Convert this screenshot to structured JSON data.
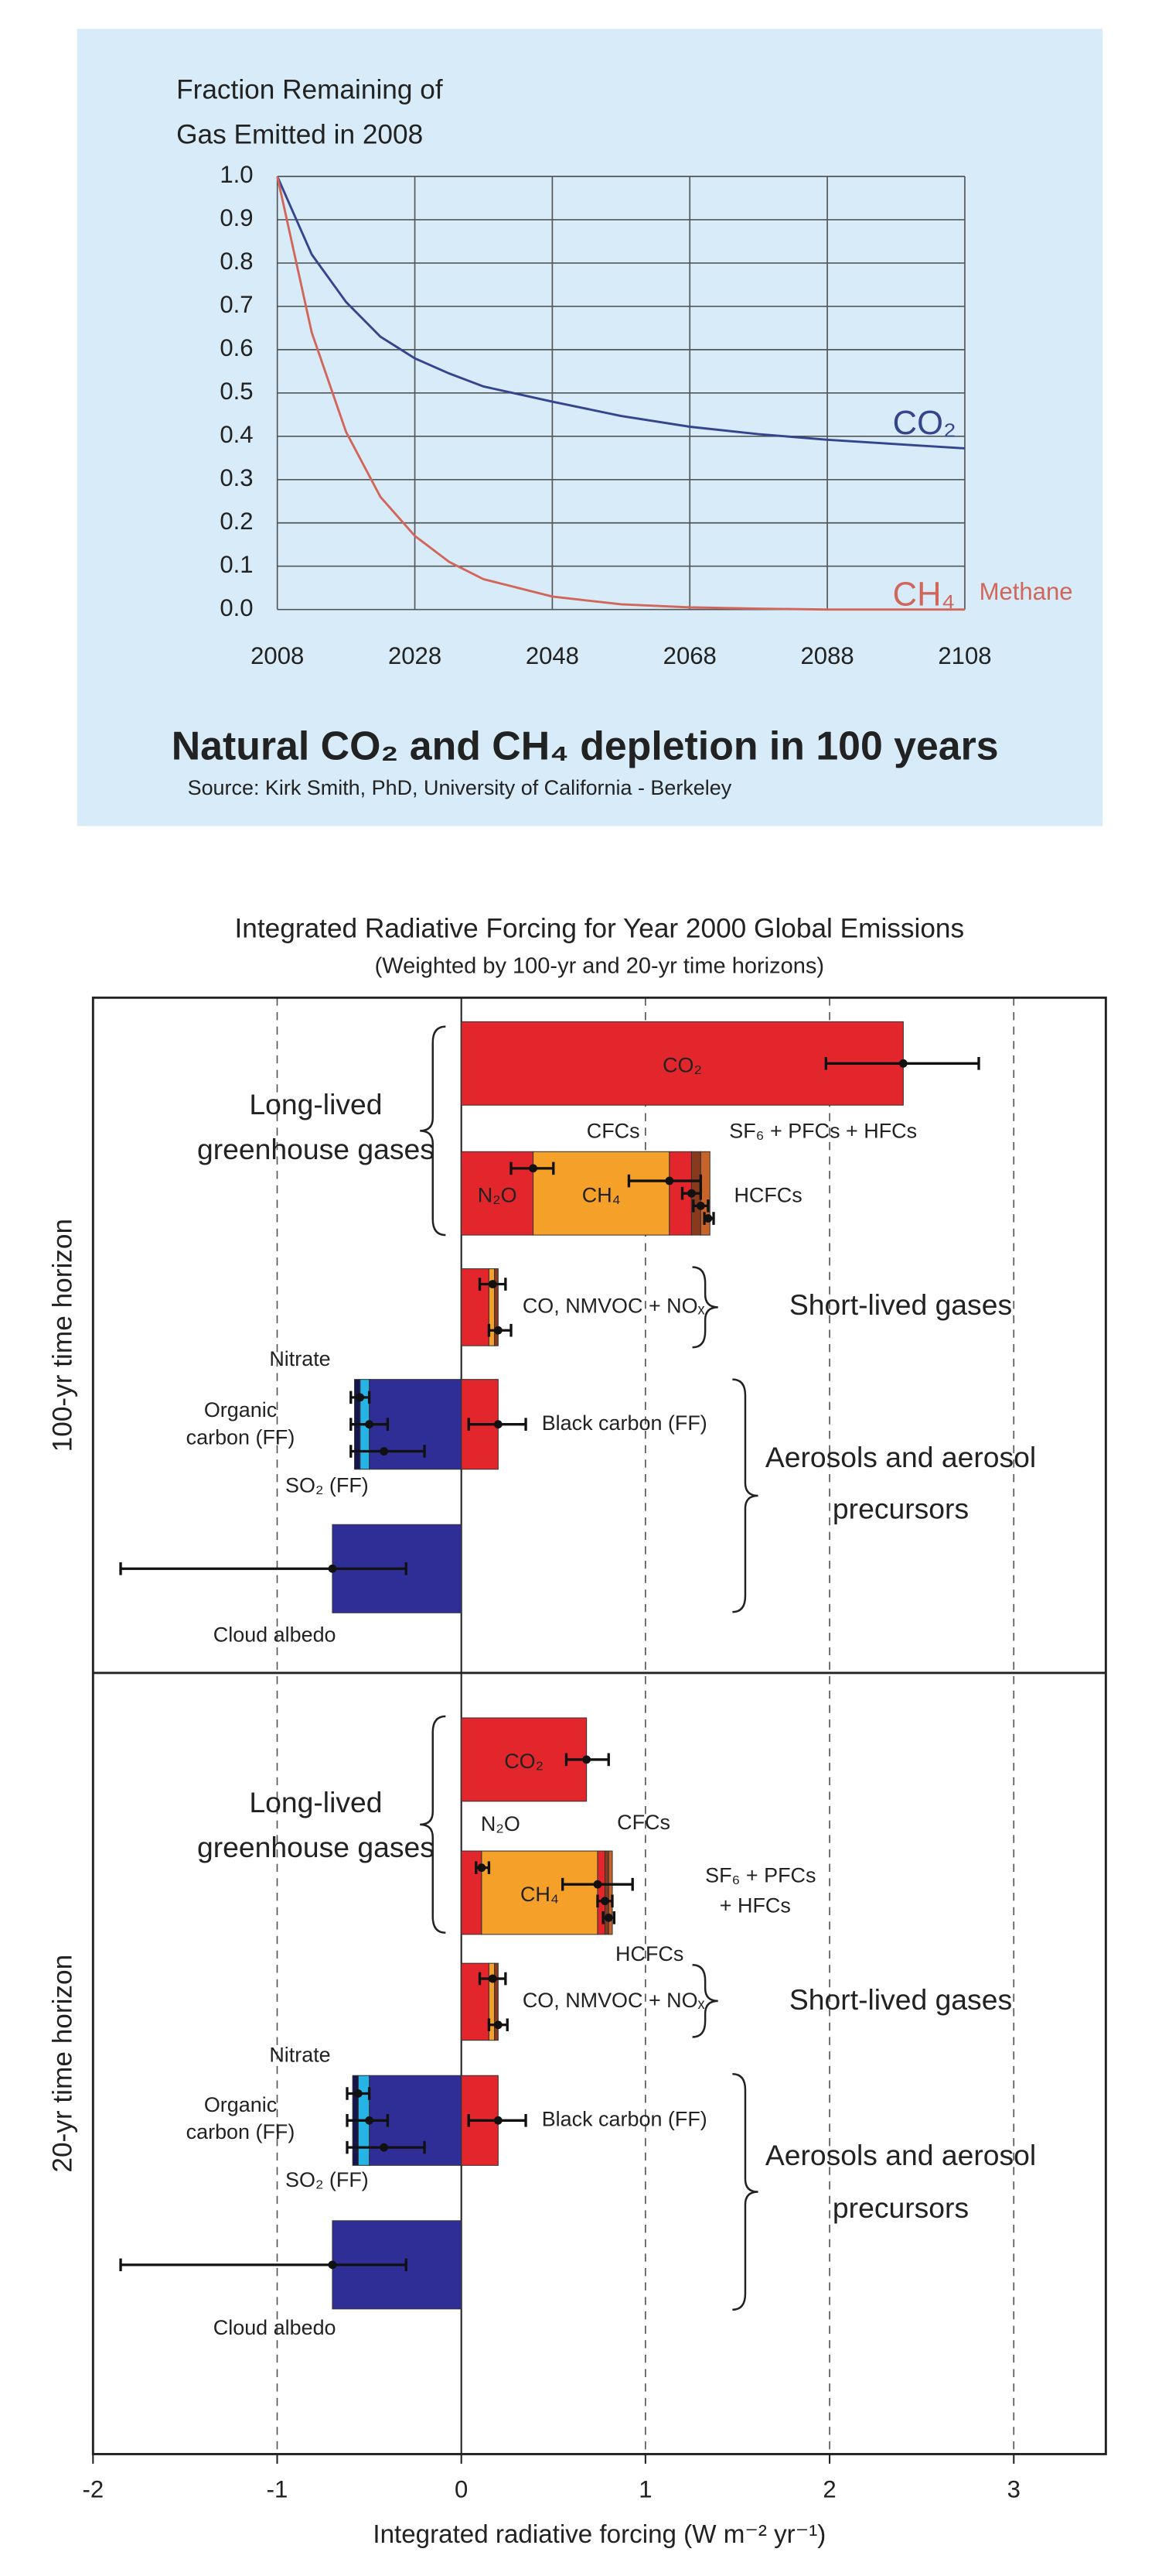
{
  "chart_data": [
    {
      "type": "line",
      "ylabel": [
        "Fraction Remaining of",
        "Gas Emitted in 2008"
      ],
      "title": "Natural CO₂ and CH₄ depletion in 100 years",
      "source": "Source:  Kirk Smith, PhD, University of California - Berkeley",
      "annotations": [
        "Methane"
      ],
      "x": [
        2008,
        2013,
        2018,
        2023,
        2028,
        2033,
        2038,
        2048,
        2058,
        2068,
        2078,
        2088,
        2098,
        2108
      ],
      "series": [
        {
          "name": "CO₂",
          "color": "#34458e",
          "values": [
            1.0,
            0.82,
            0.71,
            0.63,
            0.58,
            0.545,
            0.515,
            0.48,
            0.447,
            0.422,
            0.405,
            0.392,
            0.382,
            0.372
          ]
        },
        {
          "name": "CH₄",
          "color": "#d2665a",
          "values": [
            1.0,
            0.64,
            0.41,
            0.26,
            0.17,
            0.11,
            0.07,
            0.03,
            0.012,
            0.005,
            0.002,
            0.0,
            0.0,
            0.0
          ]
        }
      ],
      "xlim": [
        2008,
        2108
      ],
      "xticks": [
        2008,
        2028,
        2048,
        2068,
        2088,
        2108
      ],
      "ylim": [
        0,
        1
      ],
      "yticks": [
        {
          "value": 1,
          "label": "1.0"
        },
        0.9,
        0.8,
        0.7,
        0.6,
        0.5,
        0.4,
        0.3,
        0.2,
        0.1,
        {
          "value": 0,
          "label": "0.0"
        }
      ],
      "grid": true
    },
    {
      "type": "bar",
      "orientation": "horizontal",
      "stacked": true,
      "title": "Integrated Radiative Forcing for Year 2000 Global Emissions",
      "subtitle": "(Weighted by 100-yr and 20-yr time horizons)",
      "xlabel": "Integrated radiative forcing (W m⁻² yr⁻¹)",
      "xlim": [
        -2,
        3.5
      ],
      "xticks": [
        -2,
        -1,
        0,
        1,
        2,
        3
      ],
      "grid": true,
      "panels": [
        {
          "label": "100-yr time horizon",
          "rows": [
            {
              "segments": [
                {
                  "value": 2.4,
                  "color": "#e3262b",
                  "label": "CO₂"
                }
              ],
              "errors": [
                {
                  "value": 2.4,
                  "low": 1.98,
                  "high": 2.81
                }
              ]
            },
            {
              "segments": [
                {
                  "value": 0.39,
                  "color": "#e3262b",
                  "label": "N₂O"
                },
                {
                  "value": 0.74,
                  "color": "#f5a028",
                  "label": "CH₄"
                },
                {
                  "value": 0.12,
                  "color": "#e3262b"
                },
                {
                  "value": 0.05,
                  "color": "#8a3a1c"
                },
                {
                  "value": 0.05,
                  "color": "#c8642a"
                }
              ],
              "errors": [
                {
                  "value": 0.39,
                  "low": 0.27,
                  "high": 0.5
                },
                {
                  "value": 1.13,
                  "low": 0.91,
                  "high": 1.3
                },
                {
                  "value": 1.25,
                  "low": 1.2,
                  "high": 1.3
                },
                {
                  "value": 1.3,
                  "low": 1.26,
                  "high": 1.34
                },
                {
                  "value": 1.34,
                  "low": 1.32,
                  "high": 1.37
                }
              ]
            },
            {
              "segments": [
                {
                  "value": 0.15,
                  "color": "#e3262b"
                },
                {
                  "value": 0.03,
                  "color": "#f5a028"
                },
                {
                  "value": 0.02,
                  "color": "#8a3a1c"
                }
              ],
              "errors": [
                {
                  "value": 0.17,
                  "low": 0.1,
                  "high": 0.24
                },
                {
                  "value": 0.2,
                  "low": 0.15,
                  "high": 0.27
                }
              ]
            },
            {
              "segments": [
                {
                  "value": 0.2,
                  "color": "#e3262b"
                }
              ],
              "errors": [
                {
                  "value": 0.2,
                  "low": 0.04,
                  "high": 0.35
                }
              ]
            },
            {
              "segments": [
                {
                  "value": -0.5,
                  "color": "#2e2e96"
                },
                {
                  "value": -0.05,
                  "color": "#26b3e6"
                },
                {
                  "value": -0.03,
                  "color": "#151550"
                }
              ],
              "errors": [
                {
                  "value": -0.55,
                  "low": -0.6,
                  "high": -0.5
                },
                {
                  "value": -0.5,
                  "low": -0.6,
                  "high": -0.4
                },
                {
                  "value": -0.42,
                  "low": -0.6,
                  "high": -0.2
                }
              ]
            },
            {
              "segments": [
                {
                  "value": -0.7,
                  "color": "#2e2e96"
                }
              ],
              "errors": [
                {
                  "value": -0.7,
                  "low": -1.85,
                  "high": -0.3
                }
              ]
            }
          ],
          "annotations": [
            "CFCs",
            "SF₆ + PFCs + HFCs",
            "HCFCs",
            "CO, NMVOC + NOₓ",
            "Black carbon (FF)",
            "Nitrate",
            "Organic",
            "carbon (FF)",
            "SO₂ (FF)",
            "Cloud albedo"
          ],
          "groups": [
            {
              "label": [
                "Long-lived",
                "greenhouse gases"
              ]
            },
            {
              "label": [
                "Short-lived gases"
              ]
            },
            {
              "label": [
                "Aerosols and aerosol",
                "precursors"
              ]
            }
          ]
        },
        {
          "label": "20-yr time horizon",
          "rows": [
            {
              "segments": [
                {
                  "value": 0.68,
                  "color": "#e3262b",
                  "label": "CO₂"
                }
              ],
              "errors": [
                {
                  "value": 0.68,
                  "low": 0.57,
                  "high": 0.8
                }
              ]
            },
            {
              "segments": [
                {
                  "value": 0.11,
                  "color": "#e3262b"
                },
                {
                  "value": 0.63,
                  "color": "#f5a028",
                  "label": "CH₄"
                },
                {
                  "value": 0.04,
                  "color": "#e3262b"
                },
                {
                  "value": 0.02,
                  "color": "#8a3a1c"
                },
                {
                  "value": 0.02,
                  "color": "#c8642a"
                }
              ],
              "errors": [
                {
                  "value": 0.11,
                  "low": 0.08,
                  "high": 0.15
                },
                {
                  "value": 0.74,
                  "low": 0.55,
                  "high": 0.93
                },
                {
                  "value": 0.78,
                  "low": 0.74,
                  "high": 0.82
                },
                {
                  "value": 0.8,
                  "low": 0.77,
                  "high": 0.83
                }
              ]
            },
            {
              "segments": [
                {
                  "value": 0.15,
                  "color": "#e3262b"
                },
                {
                  "value": 0.03,
                  "color": "#f5a028"
                },
                {
                  "value": 0.02,
                  "color": "#8a3a1c"
                }
              ],
              "errors": [
                {
                  "value": 0.17,
                  "low": 0.1,
                  "high": 0.24
                },
                {
                  "value": 0.2,
                  "low": 0.15,
                  "high": 0.25
                }
              ]
            },
            {
              "segments": [
                {
                  "value": 0.2,
                  "color": "#e3262b"
                }
              ],
              "errors": [
                {
                  "value": 0.2,
                  "low": 0.04,
                  "high": 0.35
                }
              ]
            },
            {
              "segments": [
                {
                  "value": -0.5,
                  "color": "#2e2e96"
                },
                {
                  "value": -0.06,
                  "color": "#26b3e6"
                },
                {
                  "value": -0.03,
                  "color": "#151550"
                }
              ],
              "errors": [
                {
                  "value": -0.56,
                  "low": -0.62,
                  "high": -0.5
                },
                {
                  "value": -0.5,
                  "low": -0.62,
                  "high": -0.4
                },
                {
                  "value": -0.42,
                  "low": -0.62,
                  "high": -0.2
                }
              ]
            },
            {
              "segments": [
                {
                  "value": -0.7,
                  "color": "#2e2e96"
                }
              ],
              "errors": [
                {
                  "value": -0.7,
                  "low": -1.85,
                  "high": -0.3
                }
              ]
            }
          ],
          "annotations": [
            "N₂O",
            "CFCs",
            "SF₆ + PFCs",
            "+ HFCs",
            "HCFCs",
            "CO, NMVOC + NOₓ",
            "Black carbon (FF)",
            "Nitrate",
            "Organic",
            "carbon (FF)",
            "SO₂ (FF)",
            "Cloud albedo"
          ],
          "groups": [
            {
              "label": [
                "Long-lived",
                "greenhouse gases"
              ]
            },
            {
              "label": [
                "Short-lived gases"
              ]
            },
            {
              "label": [
                "Aerosols and aerosol",
                "precursors"
              ]
            }
          ]
        }
      ]
    }
  ]
}
